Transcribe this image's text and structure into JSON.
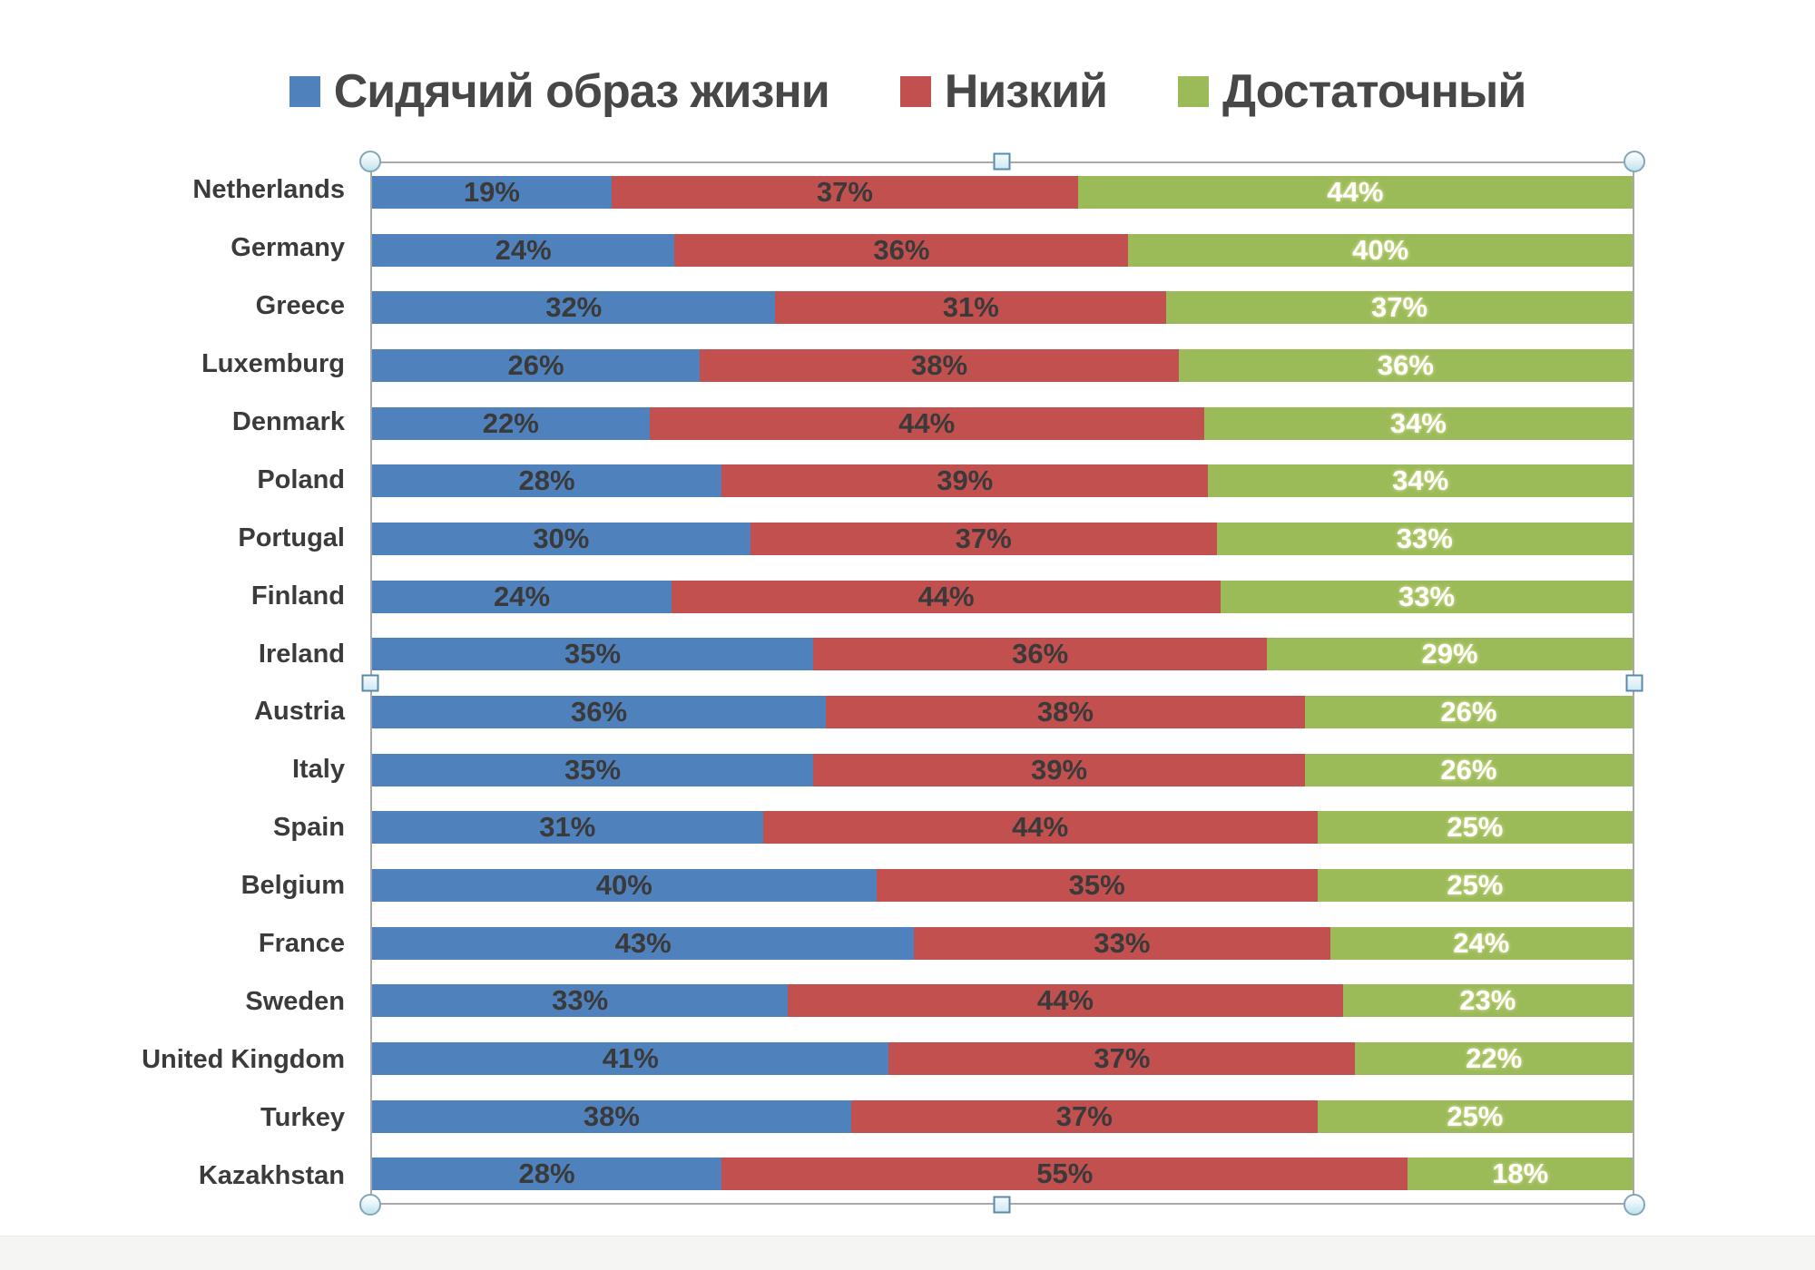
{
  "legend": {
    "items": [
      {
        "label": "Сидячий образ жизни",
        "color": "#4f81bd"
      },
      {
        "label": "Низкий",
        "color": "#c2504e"
      },
      {
        "label": "Достаточный",
        "color": "#9bbb59"
      }
    ]
  },
  "chart_data": {
    "type": "bar",
    "orientation": "horizontal-stacked",
    "unit": "%",
    "categories": [
      "Netherlands",
      "Germany",
      "Greece",
      "Luxemburg",
      "Denmark",
      "Poland",
      "Portugal",
      "Finland",
      "Ireland",
      "Austria",
      "Italy",
      "Spain",
      "Belgium",
      "France",
      "Sweden",
      "United Kingdom",
      "Turkey",
      "Kazakhstan"
    ],
    "series": [
      {
        "name": "Сидячий образ жизни",
        "color": "#4f81bd",
        "value_text_color": "#3a3a3a",
        "values": [
          19,
          24,
          32,
          26,
          22,
          28,
          30,
          24,
          35,
          36,
          35,
          31,
          40,
          43,
          33,
          41,
          38,
          28
        ]
      },
      {
        "name": "Низкий",
        "color": "#c2504e",
        "value_text_color": "#3a3a3a",
        "values": [
          37,
          36,
          31,
          38,
          44,
          39,
          37,
          44,
          36,
          38,
          39,
          44,
          35,
          33,
          44,
          37,
          37,
          55
        ]
      },
      {
        "name": "Достаточный",
        "color": "#9bbb59",
        "value_text_color": "#ffffff",
        "values": [
          44,
          40,
          37,
          36,
          34,
          34,
          33,
          33,
          29,
          26,
          26,
          25,
          25,
          24,
          23,
          22,
          25,
          18
        ]
      }
    ],
    "data_labels": "shown, value + %",
    "xlim": [
      0,
      100
    ],
    "grid": false,
    "legend_position": "top",
    "title": ""
  },
  "selection": {
    "state": "chart selected",
    "border_color": "#a9a9a9",
    "handles": [
      "top-left",
      "top-mid",
      "top-right",
      "mid-left",
      "mid-right",
      "bottom-left",
      "bottom-mid",
      "bottom-right"
    ]
  }
}
